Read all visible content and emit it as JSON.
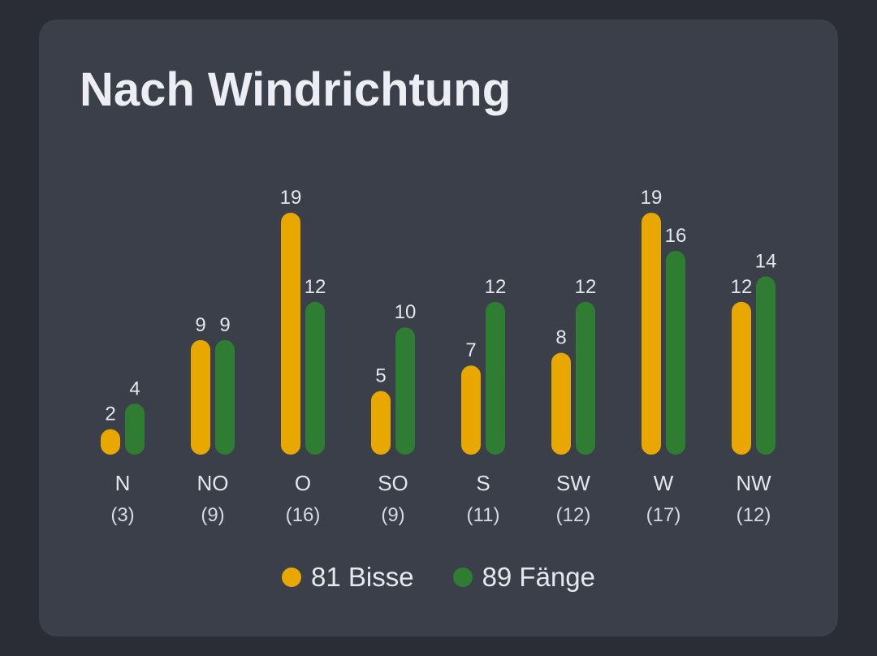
{
  "card": {
    "title": "Nach Windrichtung"
  },
  "colors": {
    "bisse": "#e8a800",
    "faenge": "#2e7d32"
  },
  "chart_data": {
    "type": "bar",
    "title": "Nach Windrichtung",
    "categories": [
      "N",
      "NO",
      "O",
      "SO",
      "S",
      "SW",
      "W",
      "NW"
    ],
    "category_counts": [
      "(3)",
      "(9)",
      "(16)",
      "(9)",
      "(11)",
      "(12)",
      "(17)",
      "(12)"
    ],
    "series": [
      {
        "name": "81 Bisse",
        "color": "#e8a800",
        "values": [
          2,
          9,
          19,
          5,
          7,
          8,
          19,
          12
        ]
      },
      {
        "name": "89 Fänge",
        "color": "#2e7d32",
        "values": [
          4,
          9,
          12,
          10,
          12,
          12,
          16,
          14
        ]
      }
    ],
    "ylim": [
      0,
      19
    ],
    "grid": false,
    "legend": "bottom"
  }
}
